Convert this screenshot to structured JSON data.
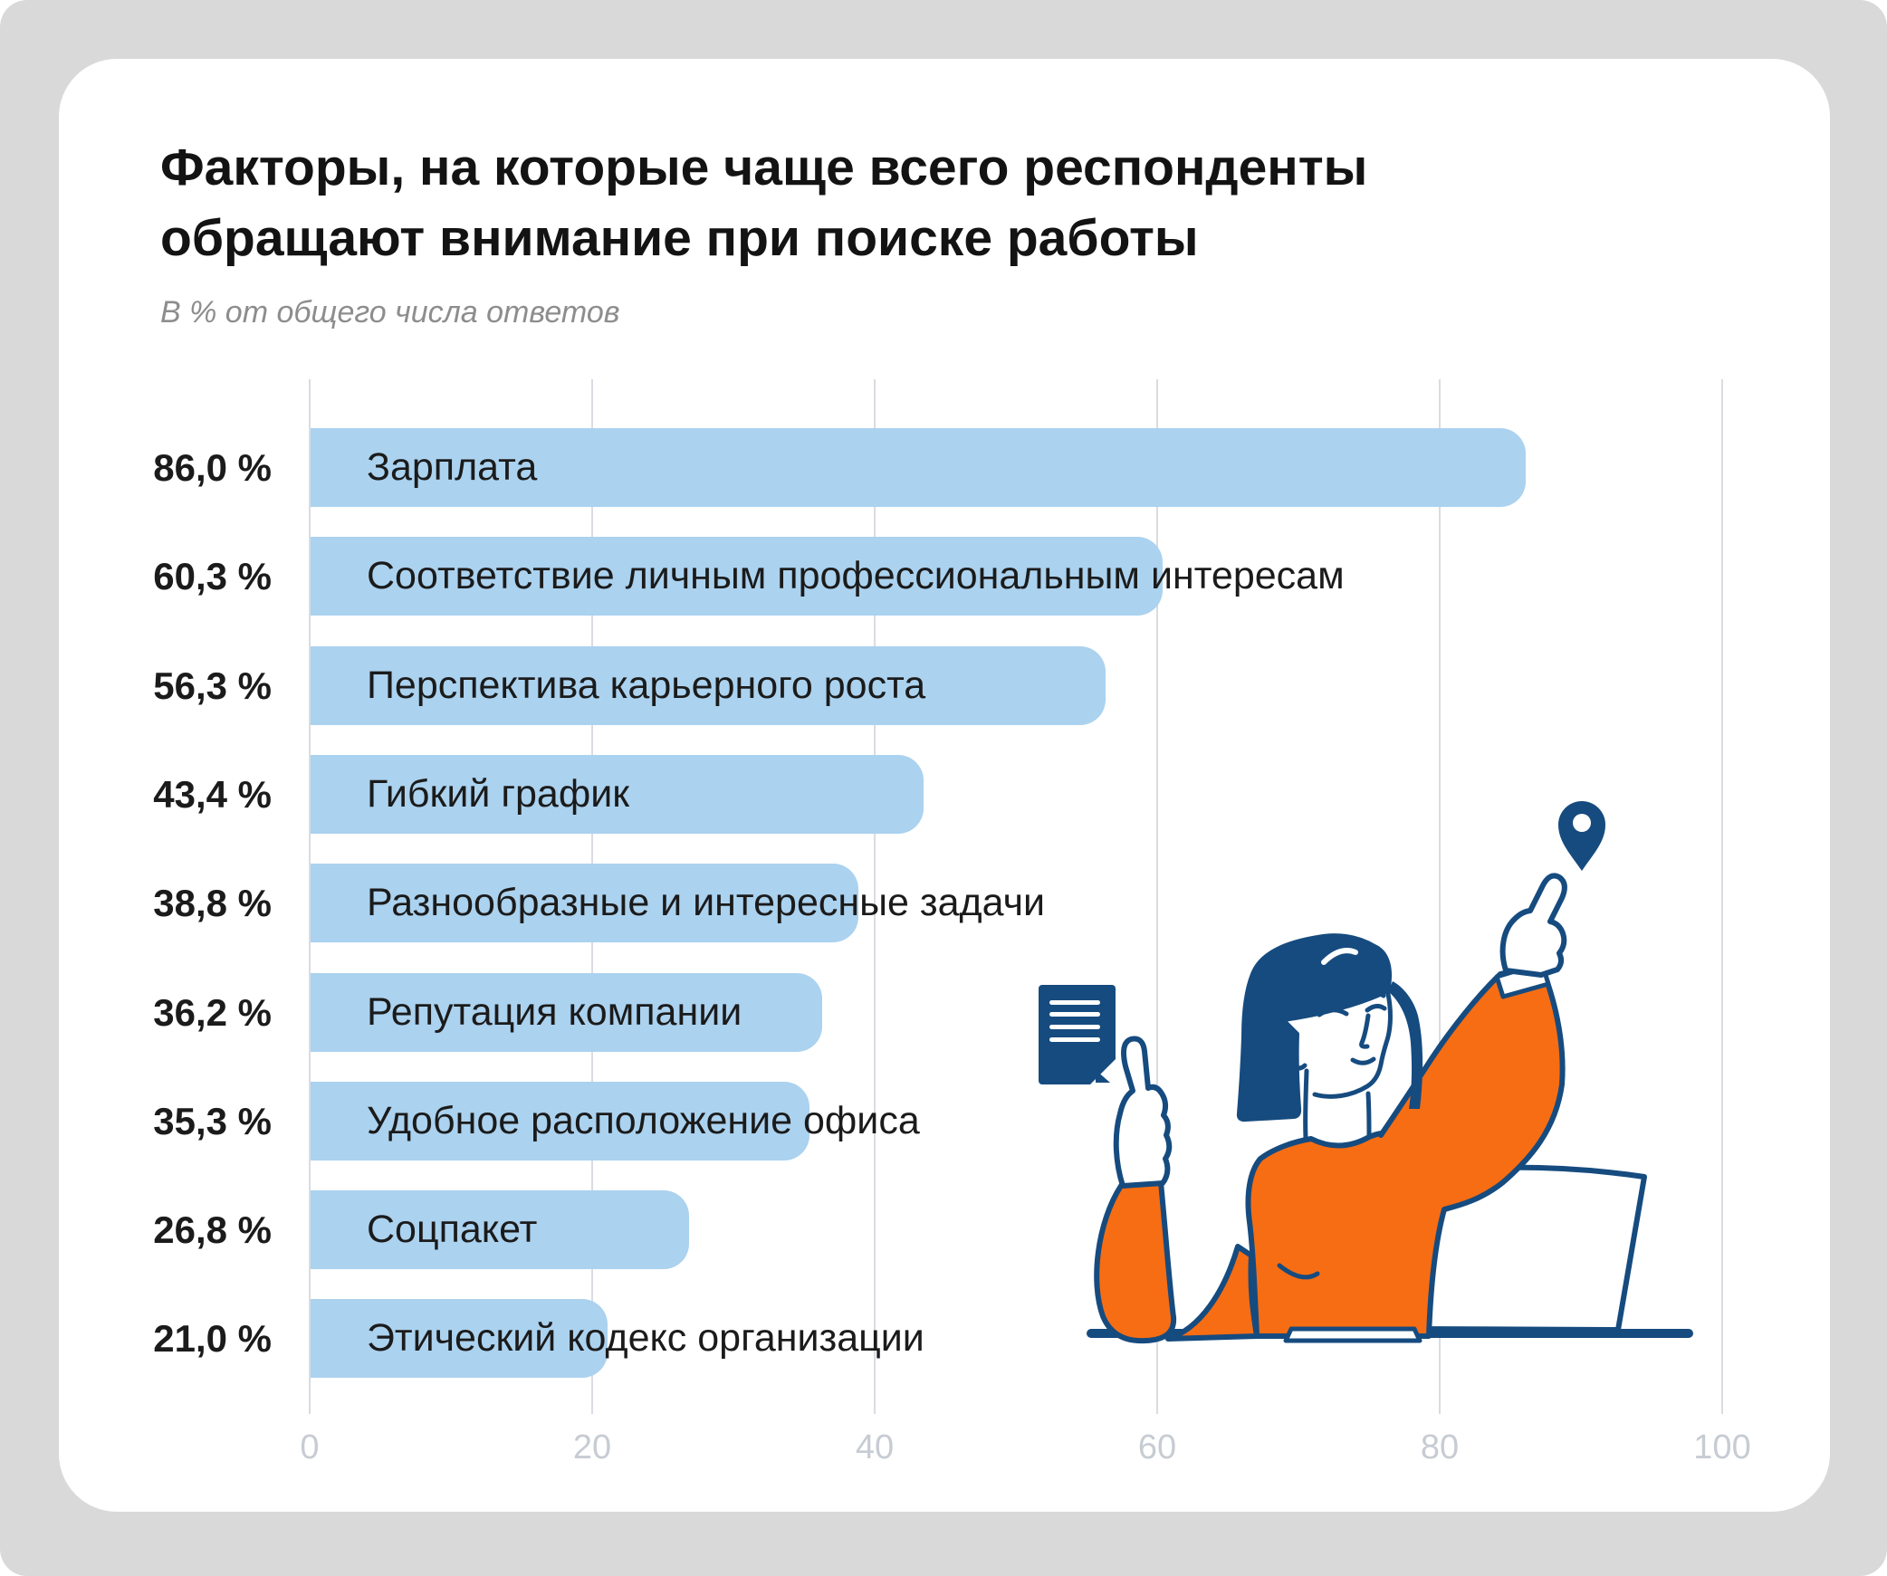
{
  "title_lines": [
    "Факторы, на которые чаще всего респонденты",
    "обращают внимание при поиске работы"
  ],
  "subtitle": "В % от общего числа ответов",
  "chart_data": {
    "type": "bar",
    "orientation": "horizontal",
    "title": "Факторы, на которые чаще всего респонденты обращают внимание при поиске работы",
    "subtitle": "В % от общего числа ответов",
    "categories": [
      "Зарплата",
      "Соответствие личным профессиональным интересам",
      "Перспектива карьерного роста",
      "Гибкий график",
      "Разнообразные и интересные задачи",
      "Репутация компании",
      "Удобное расположение офиса",
      "Соцпакет",
      "Этический кодекс организации"
    ],
    "values": [
      86.0,
      60.3,
      56.3,
      43.4,
      38.8,
      36.2,
      35.3,
      26.8,
      21.0
    ],
    "value_labels": [
      "86,0 %",
      "60,3 %",
      "56,3 %",
      "43,4 %",
      "38,8 %",
      "36,2 %",
      "35,3 %",
      "26,8 %",
      "21,0 %"
    ],
    "xlabel": "",
    "ylabel": "",
    "x_ticks": [
      0,
      20,
      40,
      60,
      80,
      100
    ],
    "xlim": [
      0,
      100
    ],
    "grid": true,
    "legend": false,
    "bar_color": "#ABD2EF"
  },
  "colors": {
    "bar": "#ABD2EF",
    "navy": "#164B7F",
    "orange": "#F76D13",
    "card": "#ffffff",
    "page_background": "#d9d9d9",
    "grid": "#d9dce1",
    "tick_text": "#c7ccd3"
  },
  "illustration": {
    "name": "woman-pointing-at-location-pin",
    "elements": [
      "document-icon",
      "pointing-hand-left",
      "woman-figure",
      "pointing-hand-right",
      "location-pin-icon",
      "laptop",
      "desk-line"
    ]
  }
}
